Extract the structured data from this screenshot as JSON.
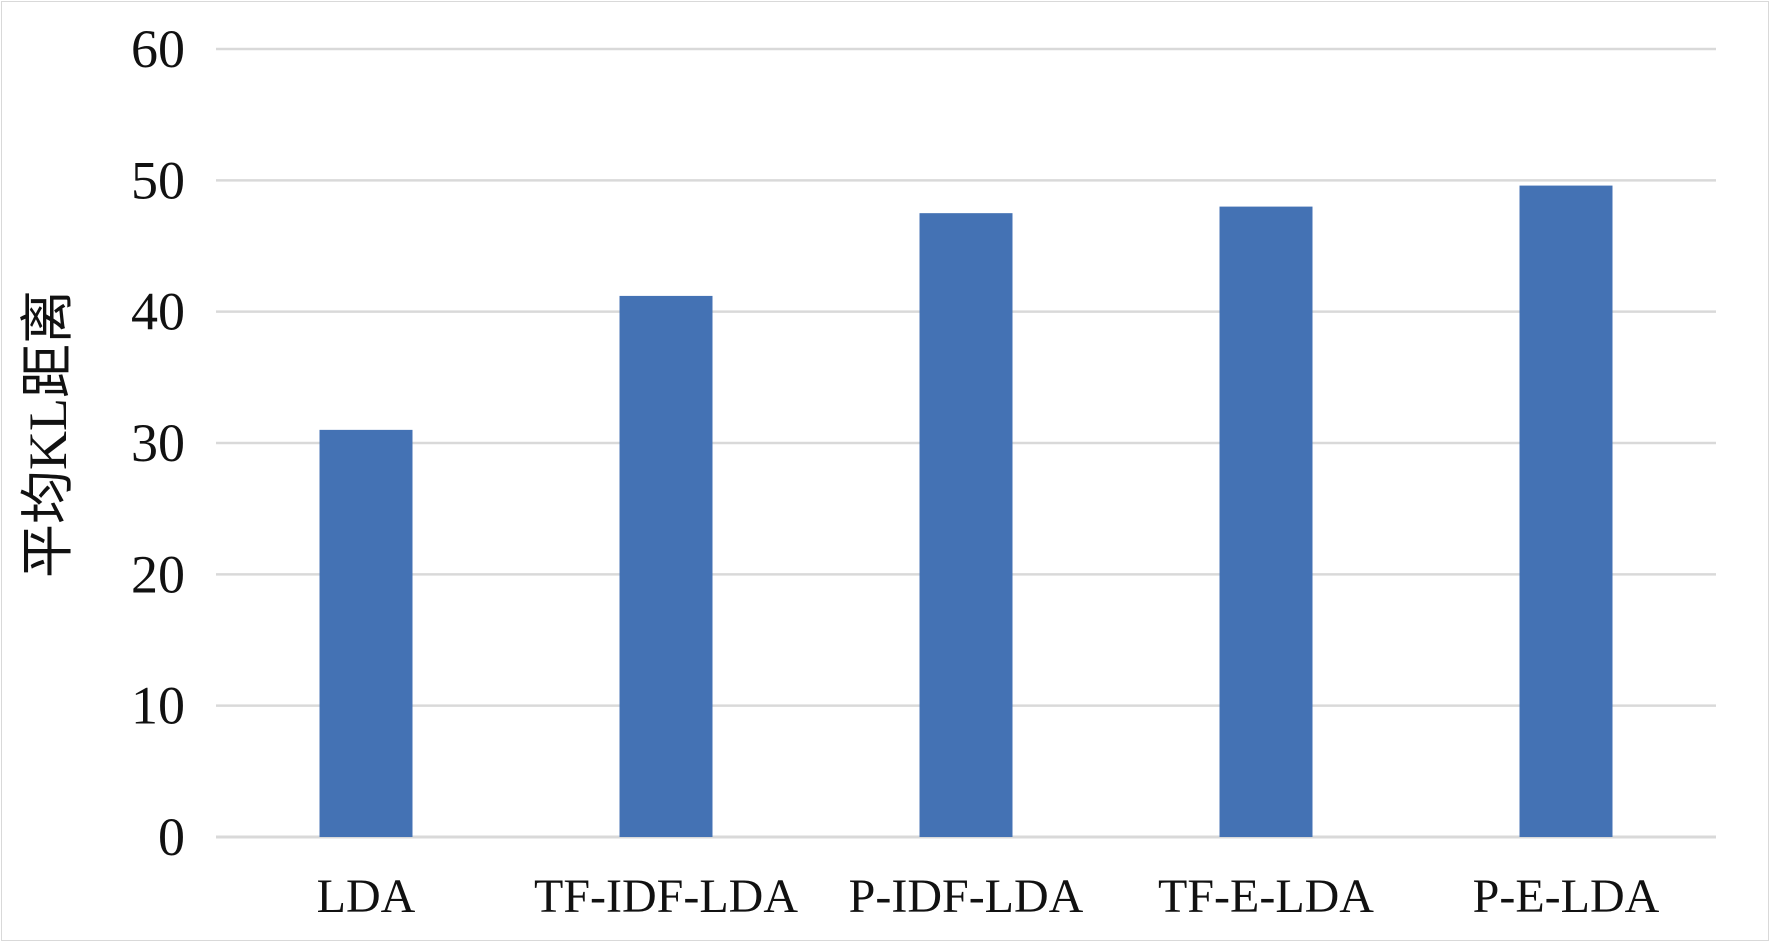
{
  "chart_data": {
    "type": "bar",
    "title": "",
    "xlabel": "",
    "ylabel": "平均KL距离",
    "categories": [
      "LDA",
      "TF-IDF-LDA",
      "P-IDF-LDA",
      "TF-E-LDA",
      "P-E-LDA"
    ],
    "values": [
      31,
      41.2,
      47.5,
      48,
      49.6
    ],
    "ylim": [
      0,
      60
    ],
    "yticks": [
      0,
      10,
      20,
      30,
      40,
      50,
      60
    ],
    "grid": true,
    "legend": "none",
    "bar_color": "#4472b4",
    "grid_color": "#d9d9d9"
  }
}
